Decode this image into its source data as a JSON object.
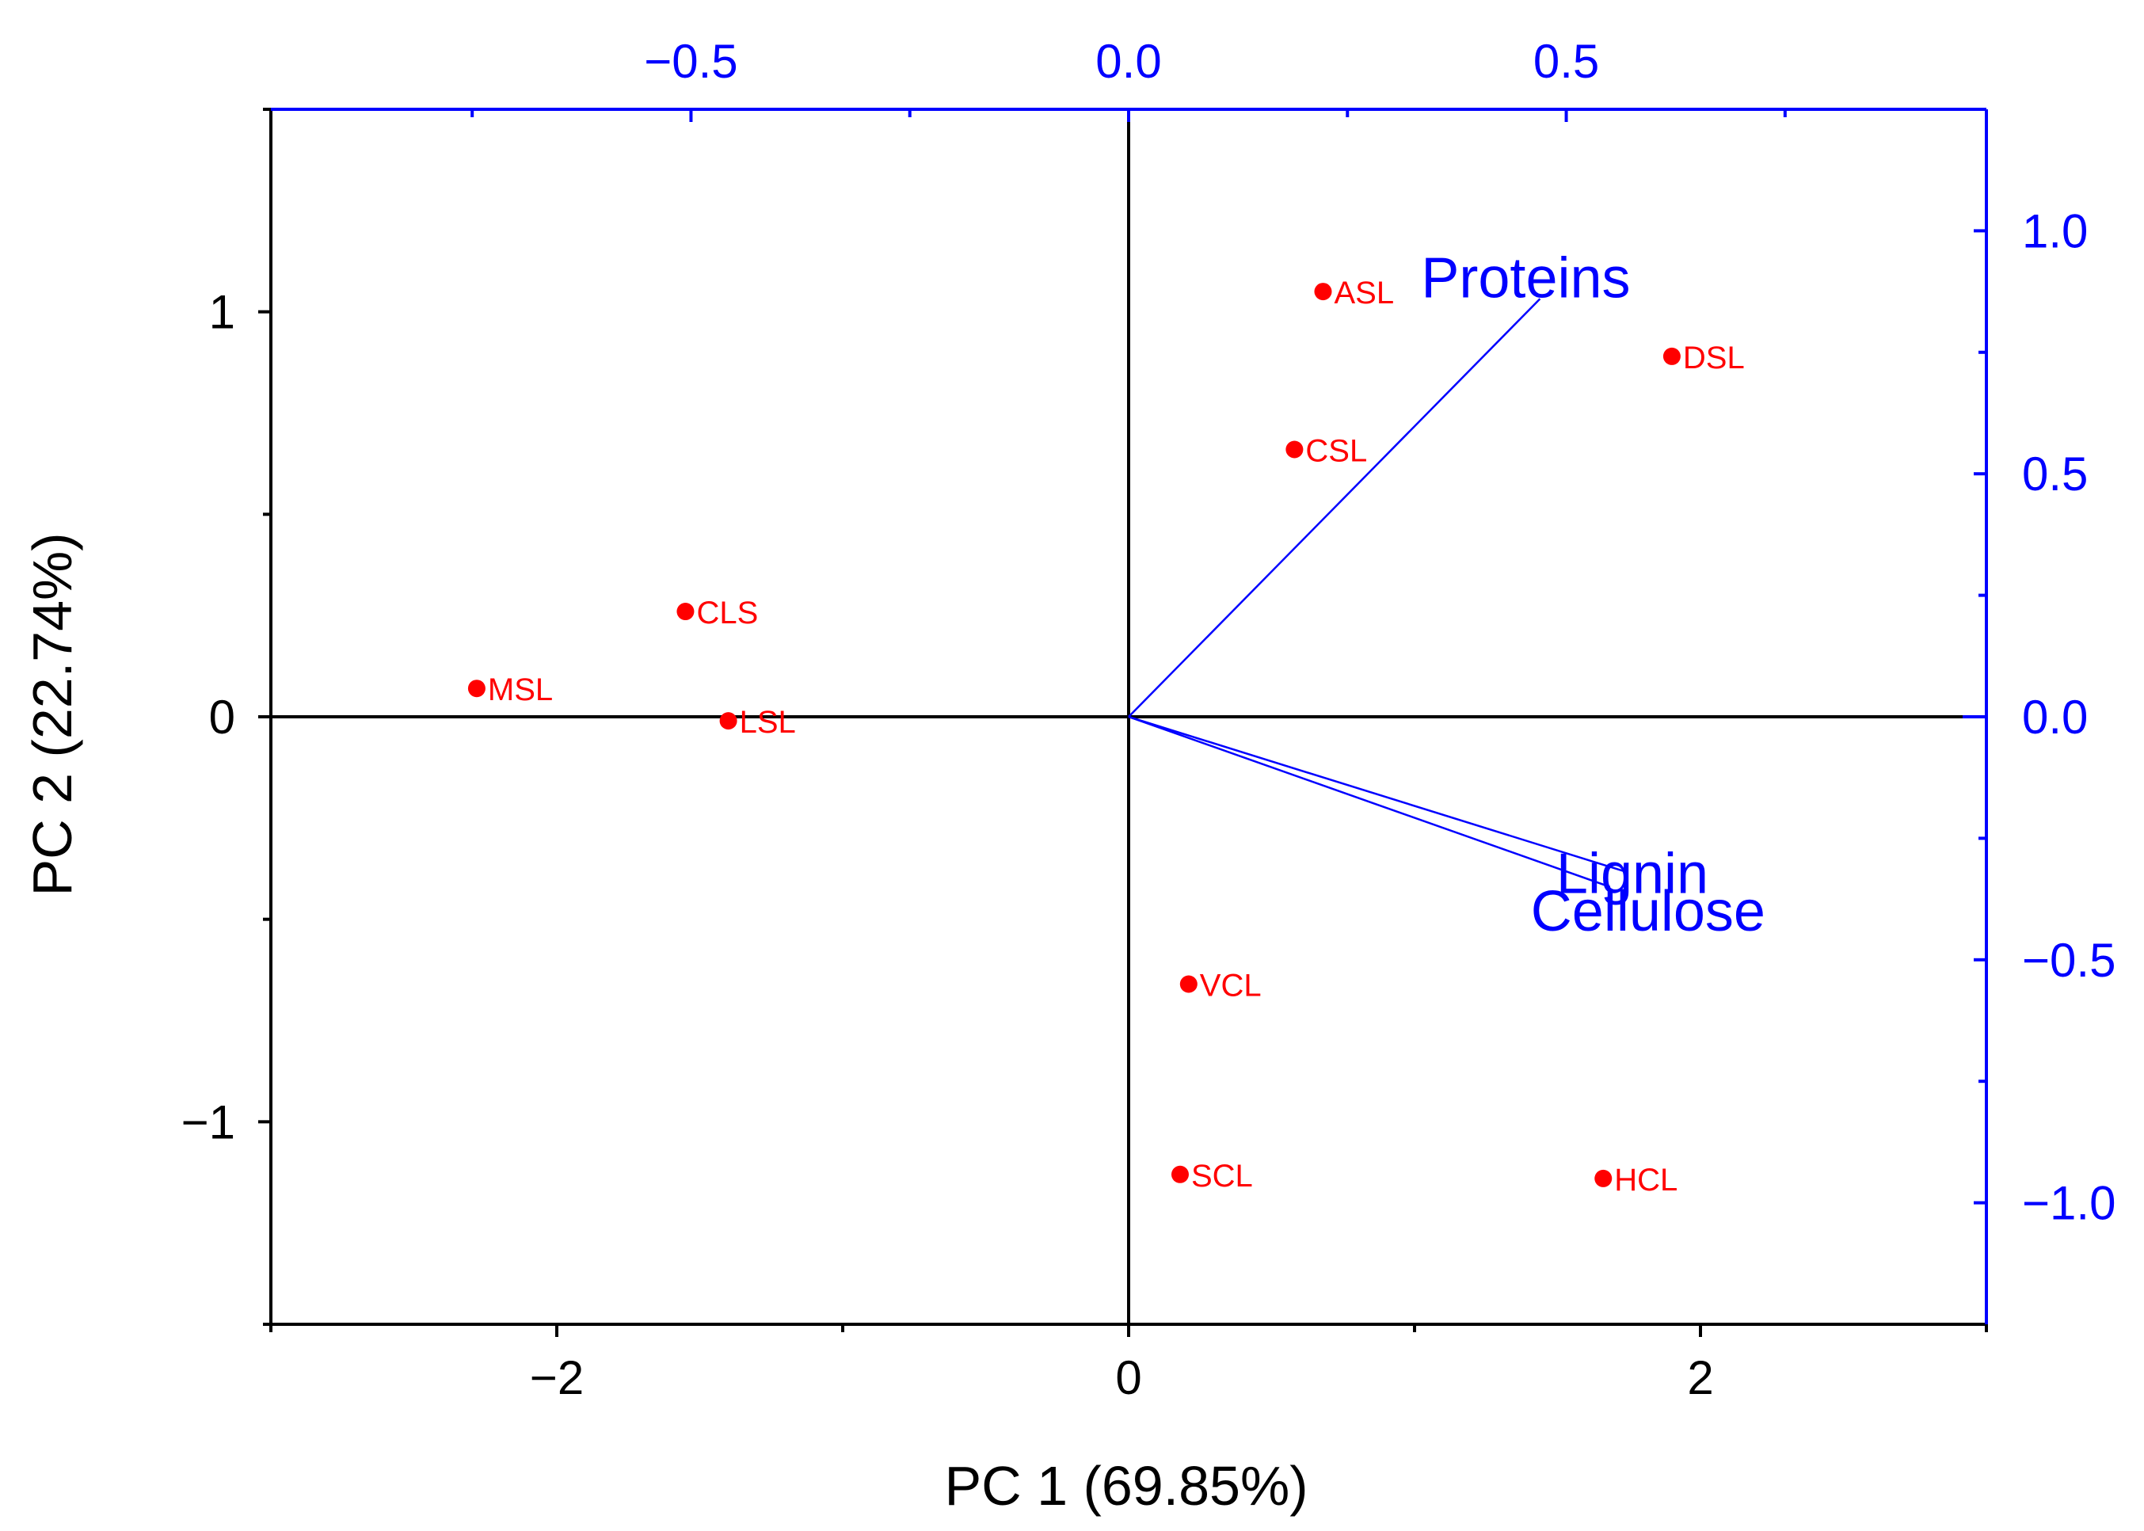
{
  "chart_data": {
    "type": "scatter",
    "subtype": "pca-biplot",
    "title": "",
    "xlabel": "PC 1 (69.85%)",
    "ylabel": "PC 2 (22.74%)",
    "xlim": [
      -3.0,
      3.0
    ],
    "ylim": [
      -1.5,
      1.5
    ],
    "x_ticks": [
      {
        "value": -2,
        "label": "−2"
      },
      {
        "value": 0,
        "label": "0"
      },
      {
        "value": 2,
        "label": "2"
      }
    ],
    "y_ticks": [
      {
        "value": -1,
        "label": "−1"
      },
      {
        "value": 0,
        "label": "0"
      },
      {
        "value": 1,
        "label": "1"
      }
    ],
    "top_axis": {
      "lim": [
        -0.98,
        0.98
      ],
      "ticks": [
        {
          "value": -0.5,
          "label": "−0.5"
        },
        {
          "value": 0.0,
          "label": "0.0"
        },
        {
          "value": 0.5,
          "label": "0.5"
        }
      ]
    },
    "right_axis": {
      "lim": [
        -1.25,
        1.25
      ],
      "ticks": [
        {
          "value": 1.0,
          "label": "1.0"
        },
        {
          "value": 0.5,
          "label": "0.5"
        },
        {
          "value": 0.0,
          "label": "0.0"
        },
        {
          "value": -0.5,
          "label": "−0.5"
        },
        {
          "value": -1.0,
          "label": "−1.0"
        }
      ]
    },
    "grid": false,
    "legend": "none",
    "scores": [
      {
        "label": "ASL",
        "x": 0.68,
        "y": 1.05
      },
      {
        "label": "DSL",
        "x": 1.9,
        "y": 0.89
      },
      {
        "label": "CSL",
        "x": 0.58,
        "y": 0.66
      },
      {
        "label": "CLS",
        "x": -1.55,
        "y": 0.26
      },
      {
        "label": "MSL",
        "x": -2.28,
        "y": 0.07
      },
      {
        "label": "LSL",
        "x": -1.4,
        "y": -0.01
      },
      {
        "label": "VCL",
        "x": 0.21,
        "y": -0.66
      },
      {
        "label": "SCL",
        "x": 0.18,
        "y": -1.13
      },
      {
        "label": "HCL",
        "x": 1.66,
        "y": -1.14
      }
    ],
    "loadings": [
      {
        "label": "Proteins",
        "x": 0.47,
        "y": 0.86
      },
      {
        "label": "Lignin",
        "x": 0.57,
        "y": -0.32
      },
      {
        "label": "Cellulose",
        "x": 0.55,
        "y": -0.35
      }
    ],
    "colors": {
      "scores": "#ff0000",
      "loadings": "#0000ff",
      "primary_axes": "#000000"
    }
  }
}
